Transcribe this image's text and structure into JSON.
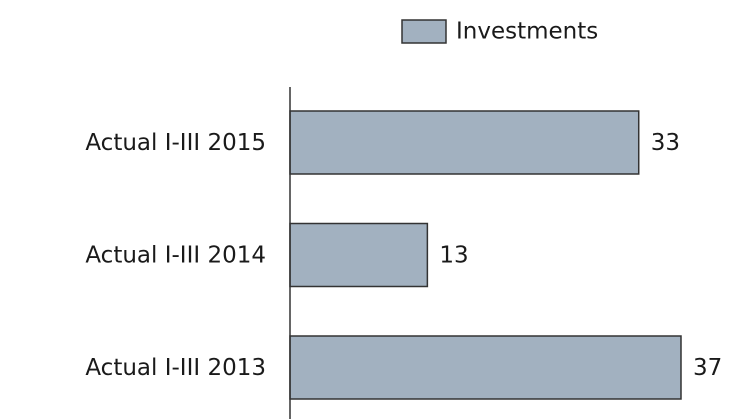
{
  "chart_data": {
    "type": "bar",
    "orientation": "horizontal",
    "categories": [
      "Actual I-III 2015",
      "Actual I-III 2014",
      "Actual I-III 2013"
    ],
    "series": [
      {
        "name": "Investments",
        "color": "#a2b1c0",
        "values": [
          33,
          13,
          37
        ]
      }
    ],
    "legend": "top"
  }
}
